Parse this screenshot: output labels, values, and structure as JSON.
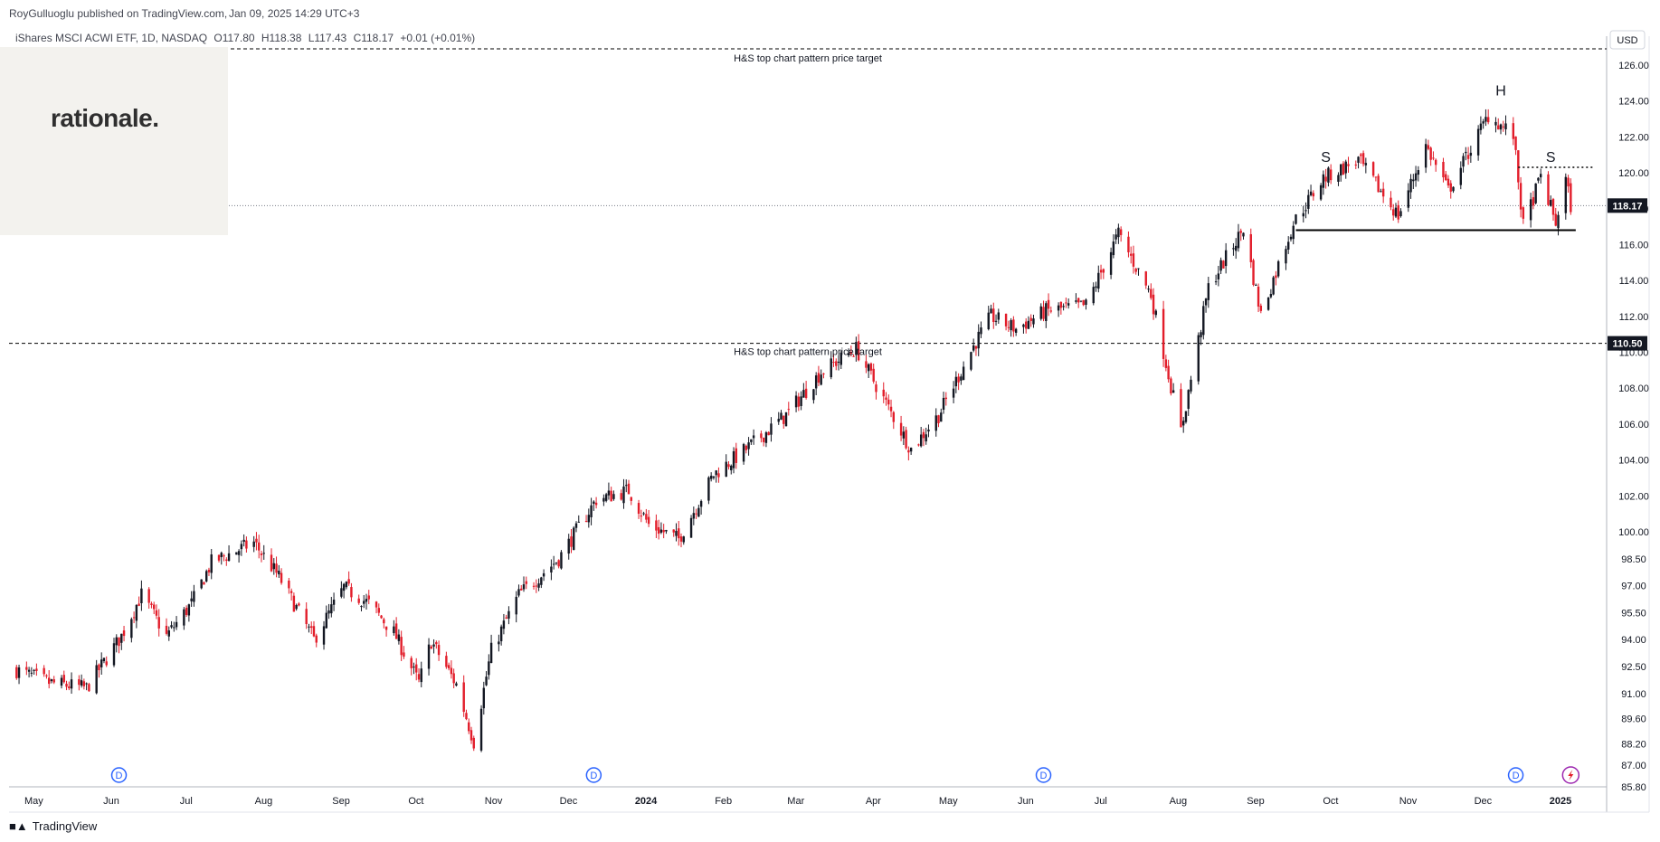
{
  "header": {
    "publisher": "RoyGulluoglu published on TradingView.com,",
    "datetime": "Jan 09, 2025 14:29 UTC+3"
  },
  "legend": {
    "symbol": "iShares MSCI ACWI ETF, 1D, NASDAQ",
    "open": "O117.80",
    "high": "H118.38",
    "low": "L117.43",
    "close": "C118.17",
    "change": "+0.01 (+0.01%)"
  },
  "brand": {
    "logo_text": "rationale.",
    "footer": "TradingView",
    "footer_icon": "tradingview-logo-icon"
  },
  "colors": {
    "up": "#131722",
    "down": "#e21d2a",
    "accent": "#000000"
  },
  "chart_data": {
    "type": "candlestick",
    "currency": "USD",
    "ylim": [
      85.8,
      127.0
    ],
    "x_labels": [
      "May",
      "Jun",
      "Jul",
      "Aug",
      "Sep",
      "Oct",
      "Nov",
      "Dec",
      "2024",
      "Feb",
      "Mar",
      "Apr",
      "May",
      "Jun",
      "Jul",
      "Aug",
      "Sep",
      "Oct",
      "Nov",
      "Dec",
      "2025"
    ],
    "y_ticks": [
      "126.00",
      "124.00",
      "122.00",
      "120.00",
      "118.00",
      "116.00",
      "114.00",
      "112.00",
      "110.00",
      "108.00",
      "106.00",
      "104.00",
      "102.00",
      "100.00",
      "98.50",
      "97.00",
      "95.50",
      "94.00",
      "92.50",
      "91.00",
      "89.60",
      "88.20",
      "87.00",
      "85.80"
    ],
    "price_path": [
      {
        "date": "2023-04-27",
        "close": 92.3
      },
      {
        "date": "2023-05-10",
        "close": 91.6
      },
      {
        "date": "2023-05-25",
        "close": 91.3
      },
      {
        "date": "2023-06-08",
        "close": 94.2
      },
      {
        "date": "2023-06-16",
        "close": 96.5
      },
      {
        "date": "2023-06-26",
        "close": 94.2
      },
      {
        "date": "2023-07-06",
        "close": 96.0
      },
      {
        "date": "2023-07-14",
        "close": 98.3
      },
      {
        "date": "2023-07-31",
        "close": 99.4
      },
      {
        "date": "2023-08-10",
        "close": 97.5
      },
      {
        "date": "2023-08-24",
        "close": 94.0
      },
      {
        "date": "2023-09-05",
        "close": 96.9
      },
      {
        "date": "2023-09-15",
        "close": 96.0
      },
      {
        "date": "2023-09-25",
        "close": 94.4
      },
      {
        "date": "2023-10-05",
        "close": 91.6
      },
      {
        "date": "2023-10-10",
        "close": 93.9
      },
      {
        "date": "2023-10-20",
        "close": 91.5
      },
      {
        "date": "2023-10-27",
        "close": 88.3
      },
      {
        "date": "2023-11-03",
        "close": 93.4
      },
      {
        "date": "2023-11-14",
        "close": 96.5
      },
      {
        "date": "2023-11-30",
        "close": 98.5
      },
      {
        "date": "2023-12-15",
        "close": 101.8
      },
      {
        "date": "2023-12-28",
        "close": 102.3
      },
      {
        "date": "2024-01-05",
        "close": 100.4
      },
      {
        "date": "2024-01-17",
        "close": 99.6
      },
      {
        "date": "2024-01-31",
        "close": 103.2
      },
      {
        "date": "2024-02-13",
        "close": 104.6
      },
      {
        "date": "2024-02-29",
        "close": 106.5
      },
      {
        "date": "2024-03-14",
        "close": 108.9
      },
      {
        "date": "2024-03-28",
        "close": 110.2
      },
      {
        "date": "2024-04-19",
        "close": 104.6
      },
      {
        "date": "2024-04-30",
        "close": 106.5
      },
      {
        "date": "2024-05-15",
        "close": 110.6
      },
      {
        "date": "2024-05-21",
        "close": 112.0
      },
      {
        "date": "2024-05-31",
        "close": 111.3
      },
      {
        "date": "2024-06-12",
        "close": 112.3
      },
      {
        "date": "2024-06-28",
        "close": 112.6
      },
      {
        "date": "2024-07-11",
        "close": 116.6
      },
      {
        "date": "2024-07-24",
        "close": 113.2
      },
      {
        "date": "2024-08-05",
        "close": 105.6
      },
      {
        "date": "2024-08-16",
        "close": 113.6
      },
      {
        "date": "2024-08-30",
        "close": 116.9
      },
      {
        "date": "2024-09-06",
        "close": 112.1
      },
      {
        "date": "2024-09-19",
        "close": 117.2
      },
      {
        "date": "2024-10-01",
        "close": 119.7
      },
      {
        "date": "2024-10-15",
        "close": 120.7
      },
      {
        "date": "2024-10-31",
        "close": 117.6
      },
      {
        "date": "2024-11-11",
        "close": 121.5
      },
      {
        "date": "2024-11-20",
        "close": 119.0
      },
      {
        "date": "2024-12-06",
        "close": 123.2
      },
      {
        "date": "2024-12-16",
        "close": 122.1
      },
      {
        "date": "2024-12-20",
        "close": 117.0
      },
      {
        "date": "2024-12-27",
        "close": 119.8
      },
      {
        "date": "2025-01-02",
        "close": 117.2
      },
      {
        "date": "2025-01-06",
        "close": 119.6
      },
      {
        "date": "2025-01-08",
        "close": 118.17
      }
    ],
    "last_close": {
      "value": 118.17,
      "label": "118.17"
    },
    "target_line": {
      "value": 110.5,
      "label": "110.50",
      "annotation": "H&S top chart pattern price target"
    },
    "top_line": {
      "value": 126.9,
      "annotation": "H&S top chart pattern price target"
    },
    "neckline": {
      "value": 116.8,
      "from": "2024-09-20",
      "to": "2025-01-10"
    },
    "right_shoulder_level": {
      "value": 120.3,
      "from": "2024-12-18",
      "to": "2025-01-17"
    },
    "pattern_labels": [
      {
        "text": "S",
        "date": "2024-10-02",
        "price": 120.6
      },
      {
        "text": "H",
        "date": "2024-12-11",
        "price": 124.3
      },
      {
        "text": "S",
        "date": "2024-12-31",
        "price": 120.6
      }
    ],
    "dividend_markers": [
      {
        "label": "D",
        "date": "2023-06-07"
      },
      {
        "label": "D",
        "date": "2023-12-14"
      },
      {
        "label": "D",
        "date": "2024-06-11"
      },
      {
        "label": "D",
        "date": "2024-12-17"
      }
    ],
    "event_icon": {
      "name": "lightning-event-icon",
      "date": "2025-01-08"
    }
  }
}
